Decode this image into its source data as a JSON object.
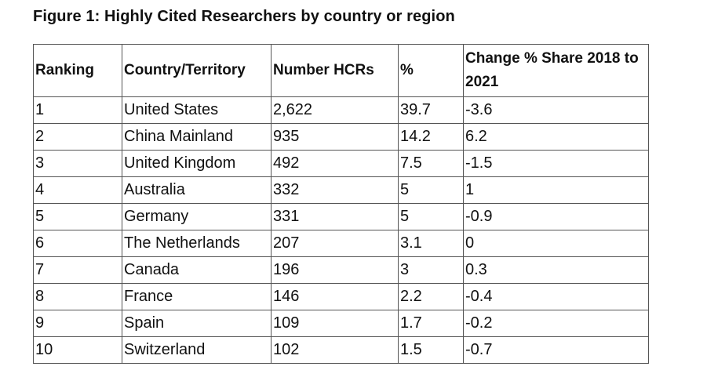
{
  "figure": {
    "title": "Figure 1: Highly Cited Researchers by country or region"
  },
  "table": {
    "headers": {
      "ranking": "Ranking",
      "country": "Country/Territory",
      "number": "Number HCRs",
      "percent": "%",
      "change": "Change % Share 2018 to 2021"
    },
    "rows": [
      {
        "rank": "1",
        "country": "United States",
        "number": "2,622",
        "percent": "39.7",
        "change": "-3.6"
      },
      {
        "rank": "2",
        "country": "China Mainland",
        "number": "935",
        "percent": "14.2",
        "change": "6.2"
      },
      {
        "rank": "3",
        "country": "United Kingdom",
        "number": "492",
        "percent": "7.5",
        "change": "-1.5"
      },
      {
        "rank": "4",
        "country": "Australia",
        "number": "332",
        "percent": "5",
        "change": "1"
      },
      {
        "rank": "5",
        "country": "Germany",
        "number": "331",
        "percent": "5",
        "change": "-0.9"
      },
      {
        "rank": "6",
        "country": "The Netherlands",
        "number": "207",
        "percent": "3.1",
        "change": "0"
      },
      {
        "rank": "7",
        "country": "Canada",
        "number": "196",
        "percent": "3",
        "change": "0.3"
      },
      {
        "rank": "8",
        "country": "France",
        "number": "146",
        "percent": "2.2",
        "change": "-0.4"
      },
      {
        "rank": "9",
        "country": "Spain",
        "number": "109",
        "percent": "1.7",
        "change": "-0.2"
      },
      {
        "rank": "10",
        "country": "Switzerland",
        "number": "102",
        "percent": "1.5",
        "change": "-0.7"
      }
    ]
  }
}
